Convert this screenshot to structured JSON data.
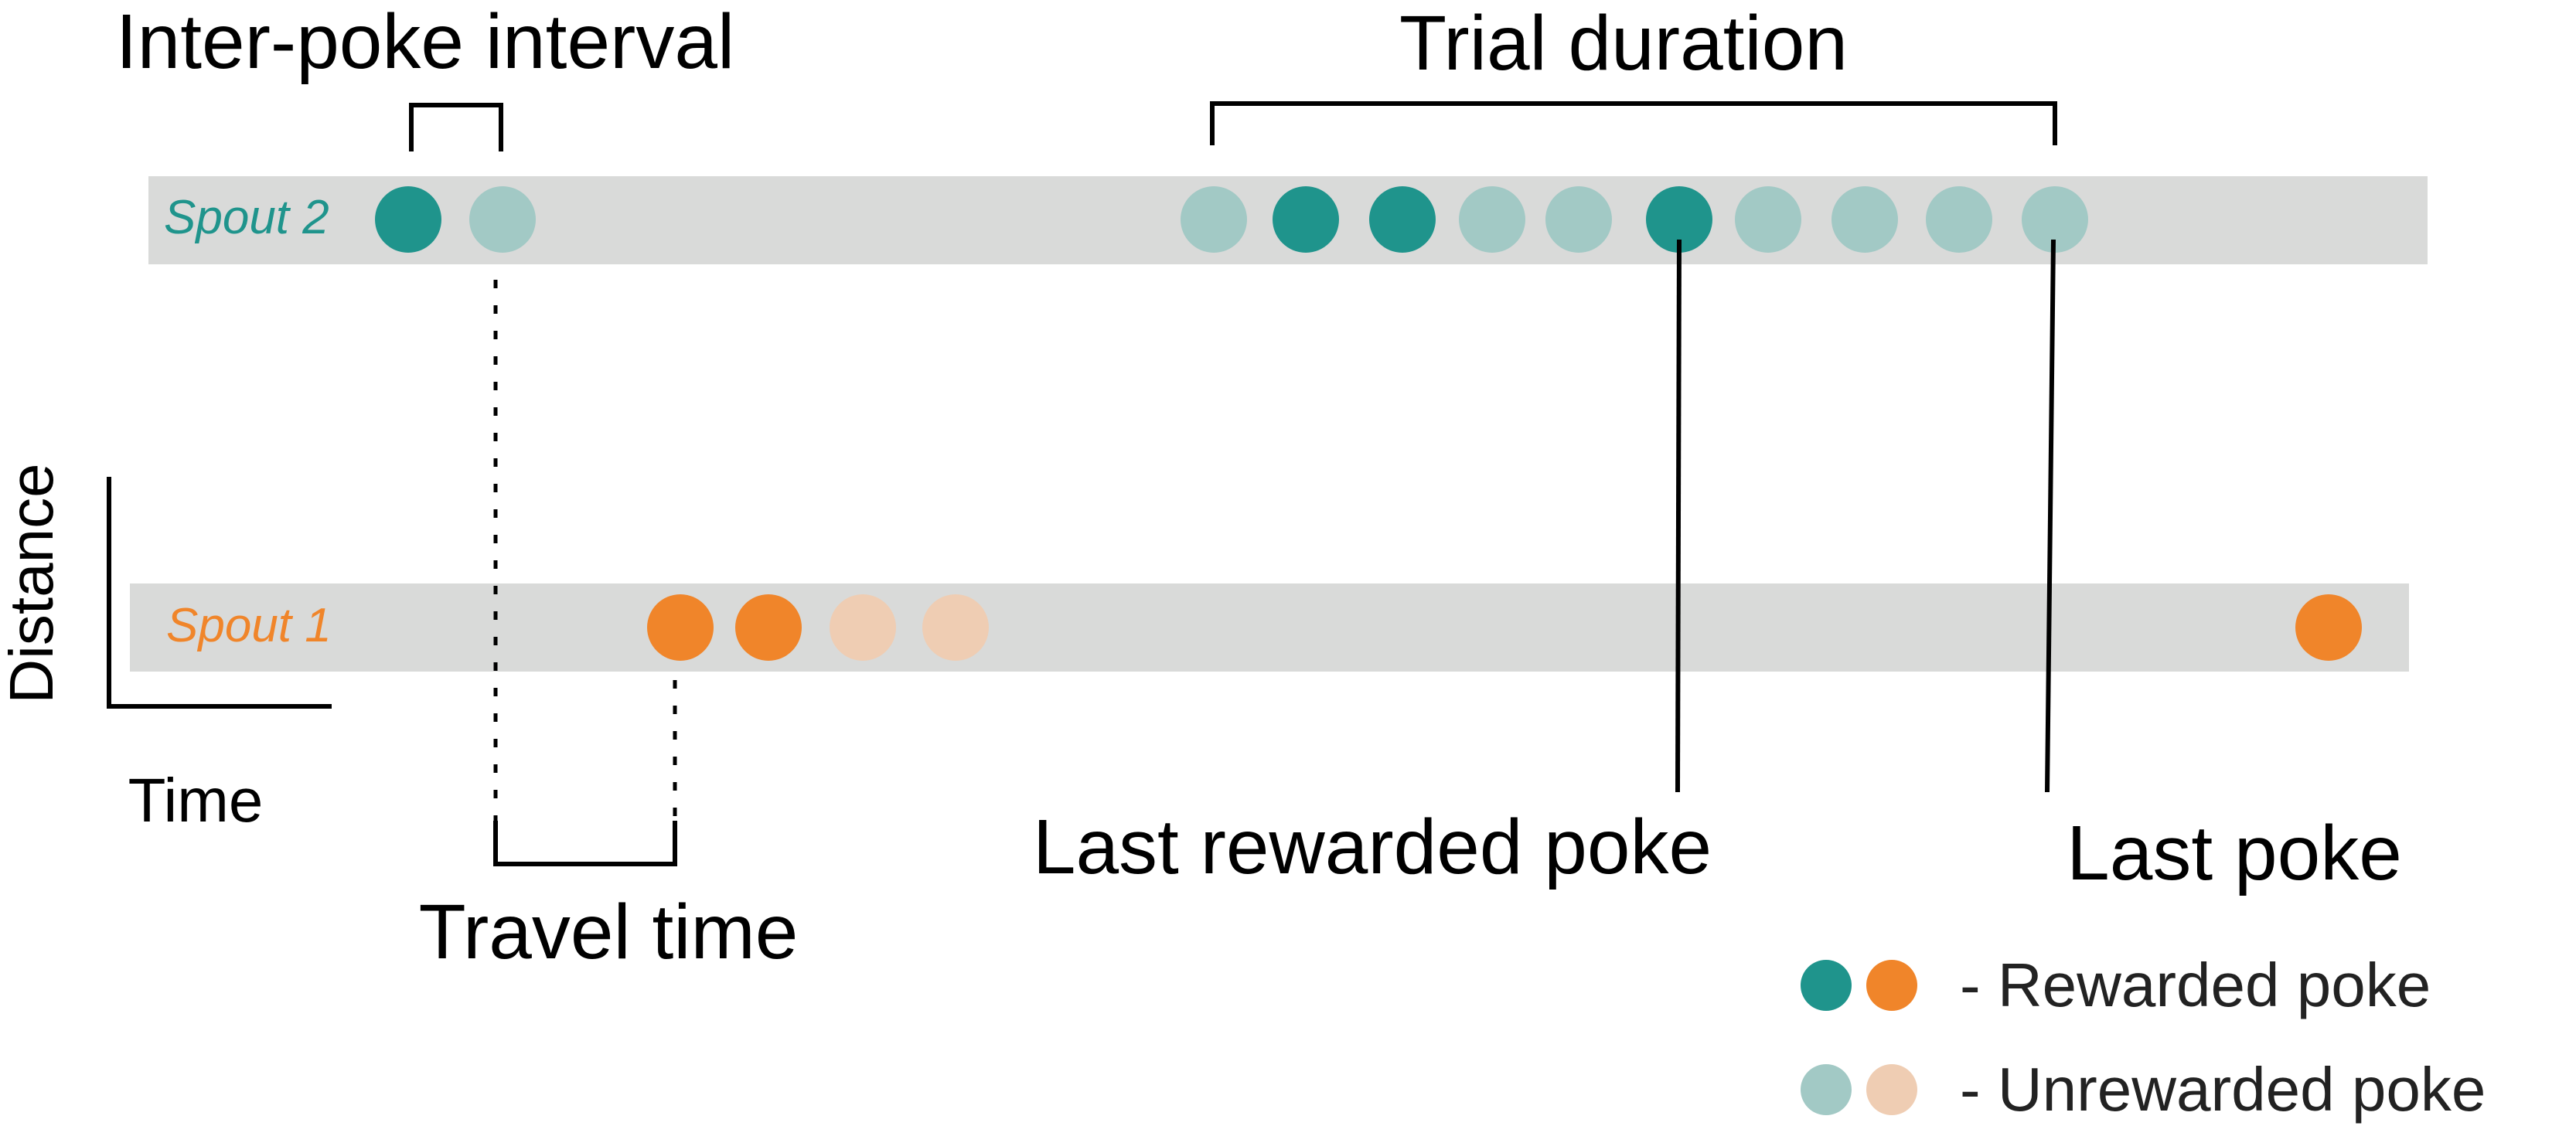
{
  "colors": {
    "spout2_rewarded": "#1f948c",
    "spout2_unrewarded": "#a2c9c5",
    "spout1_rewarded": "#f0852a",
    "spout1_unrewarded": "#efcdb3",
    "track": "#d9dad9",
    "line": "#000000"
  },
  "labels": {
    "inter_poke_interval": "Inter-poke interval",
    "trial_duration": "Trial duration",
    "last_rewarded_poke": "Last rewarded poke",
    "last_poke": "Last poke",
    "travel_time": "Travel time",
    "axis_y": "Distance",
    "axis_x": "Time"
  },
  "spouts": [
    {
      "label": "Spout 2",
      "color_key": "spout2",
      "pokes": [
        "rewarded",
        "unrewarded",
        "unrewarded",
        "rewarded",
        "rewarded",
        "unrewarded",
        "unrewarded",
        "rewarded",
        "unrewarded",
        "unrewarded",
        "unrewarded",
        "unrewarded"
      ]
    },
    {
      "label": "Spout 1",
      "color_key": "spout1",
      "pokes": [
        "rewarded",
        "rewarded",
        "unrewarded",
        "unrewarded",
        "rewarded"
      ]
    }
  ],
  "legend": [
    {
      "text": "- Rewarded poke",
      "kind": "rewarded"
    },
    {
      "text": "- Unrewarded poke",
      "kind": "unrewarded"
    }
  ]
}
